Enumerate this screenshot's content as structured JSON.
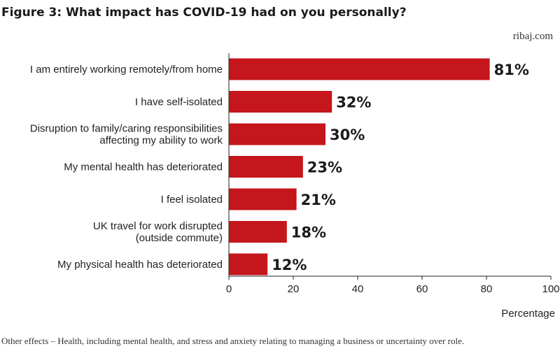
{
  "title": "Figure 3: What impact has COVID-19 had on you personally?",
  "source": "ribaj.com",
  "footnote": "Other effects – Health, including mental health, and stress and anxiety relating to managing a business or uncertainty over role.",
  "colors": {
    "bar": "#c4161c",
    "axis": "#222222",
    "text": "#222222"
  },
  "chart_data": {
    "type": "bar",
    "orientation": "horizontal",
    "categories": [
      [
        "I am entirely working remotely/from home"
      ],
      [
        "I have self-isolated"
      ],
      [
        "Disruption to family/caring responsibilities",
        "affecting my ability to work"
      ],
      [
        "My mental health has deteriorated"
      ],
      [
        "I feel isolated"
      ],
      [
        "UK travel for work disrupted",
        "(outside commute)"
      ],
      [
        "My physical health has deteriorated"
      ]
    ],
    "values": [
      81,
      32,
      30,
      23,
      21,
      18,
      12
    ],
    "data_labels": [
      "81%",
      "32%",
      "30%",
      "23%",
      "21%",
      "18%",
      "12%"
    ],
    "xlabel": "Percentage",
    "xlim": [
      0,
      100
    ],
    "xticks": [
      0,
      20,
      40,
      60,
      80,
      100
    ],
    "grid": false,
    "legend": "none"
  }
}
